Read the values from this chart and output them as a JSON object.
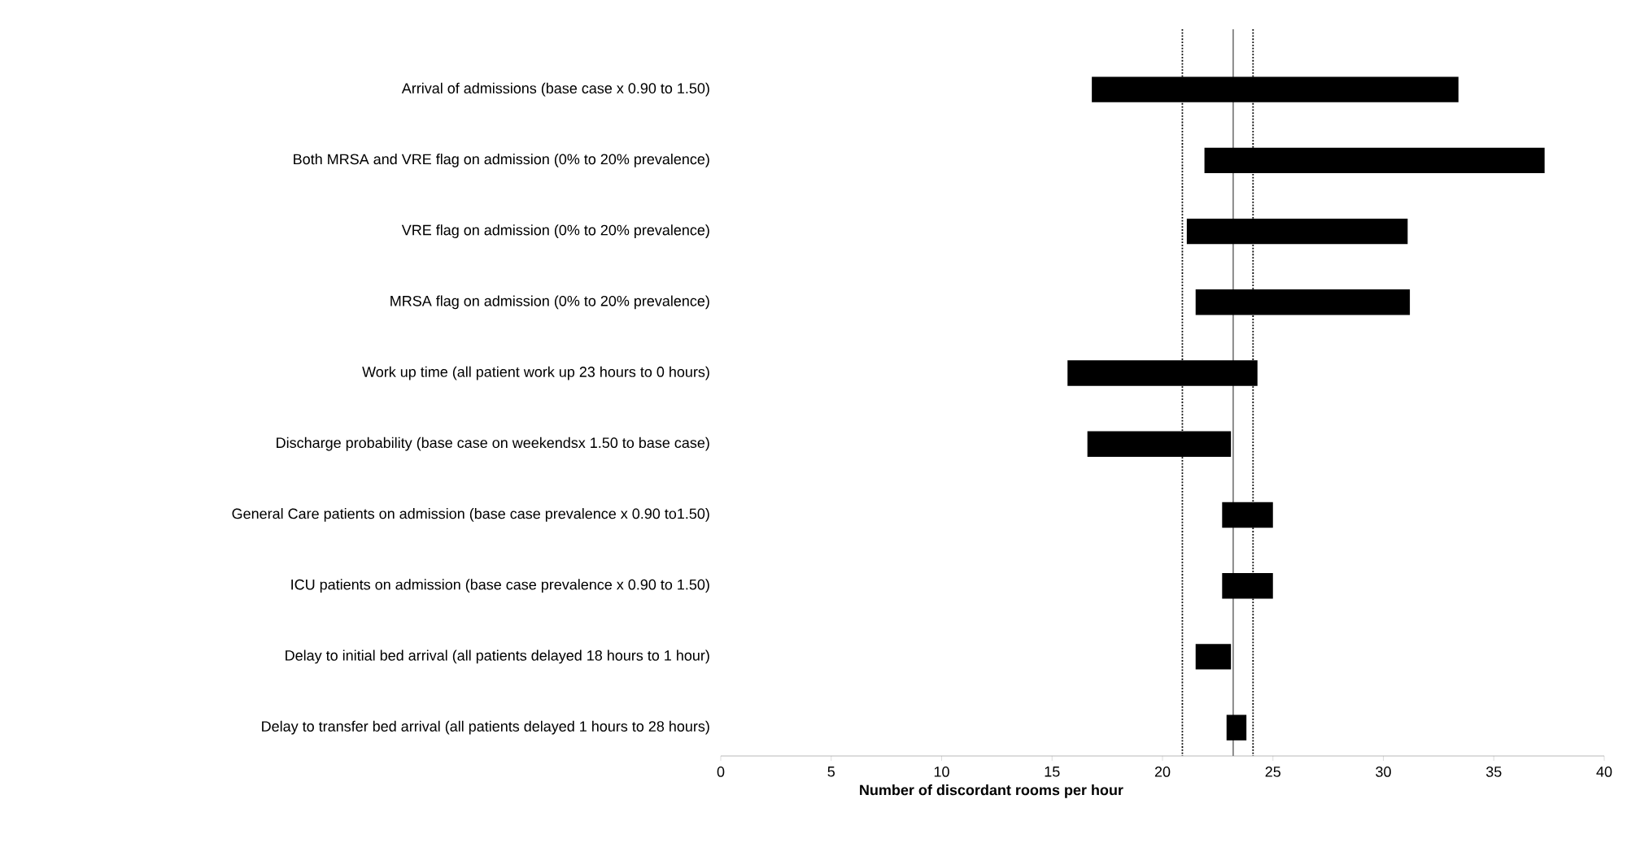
{
  "chart_data": {
    "type": "bar",
    "orientation": "horizontal",
    "xlabel": "Number of discordant rooms per hour",
    "categories": [
      "Arrival of admissions (base case x 0.90 to 1.50)",
      "Both MRSA and VRE flag on admission (0% to 20%  prevalence)",
      "VRE flag on admission (0% to 20% prevalence)",
      "MRSA flag on admission (0% to 20% prevalence)",
      "Work up time (all  patient work up 23 hours to 0 hours)",
      "Discharge probability (base case on weekendsx 1.50 to base case)",
      "General Care  patients on admission (base case prevalence  x 0.90 to1.50)",
      "ICU patients on admission (base case prevalence  x 0.90 to 1.50)",
      "Delay to initial bed arrival  (all patients  delayed 18 hours  to 1 hour)",
      "Delay to transfer bed arrival (all  patients delayed  1 hours to 28 hours)"
    ],
    "base": [
      16.8,
      21.9,
      21.1,
      21.5,
      15.7,
      16.6,
      22.7,
      22.7,
      21.5,
      22.9
    ],
    "values": [
      16.6,
      15.4,
      10.0,
      9.7,
      8.6,
      6.5,
      2.3,
      2.3,
      1.6,
      0.9
    ],
    "color": "#000000",
    "xlim": [
      0,
      40
    ],
    "xticks": [
      0,
      5,
      10,
      15,
      20,
      25,
      30,
      35,
      40
    ],
    "ref_lines": [
      {
        "axis": "x",
        "value": 20.9,
        "line_style": "dotted",
        "color": "#000000"
      },
      {
        "axis": "x",
        "value": 23.2,
        "line_style": "solid",
        "color": "#808080"
      },
      {
        "axis": "x",
        "value": 24.1,
        "line_style": "dotted",
        "color": "#000000"
      }
    ]
  }
}
